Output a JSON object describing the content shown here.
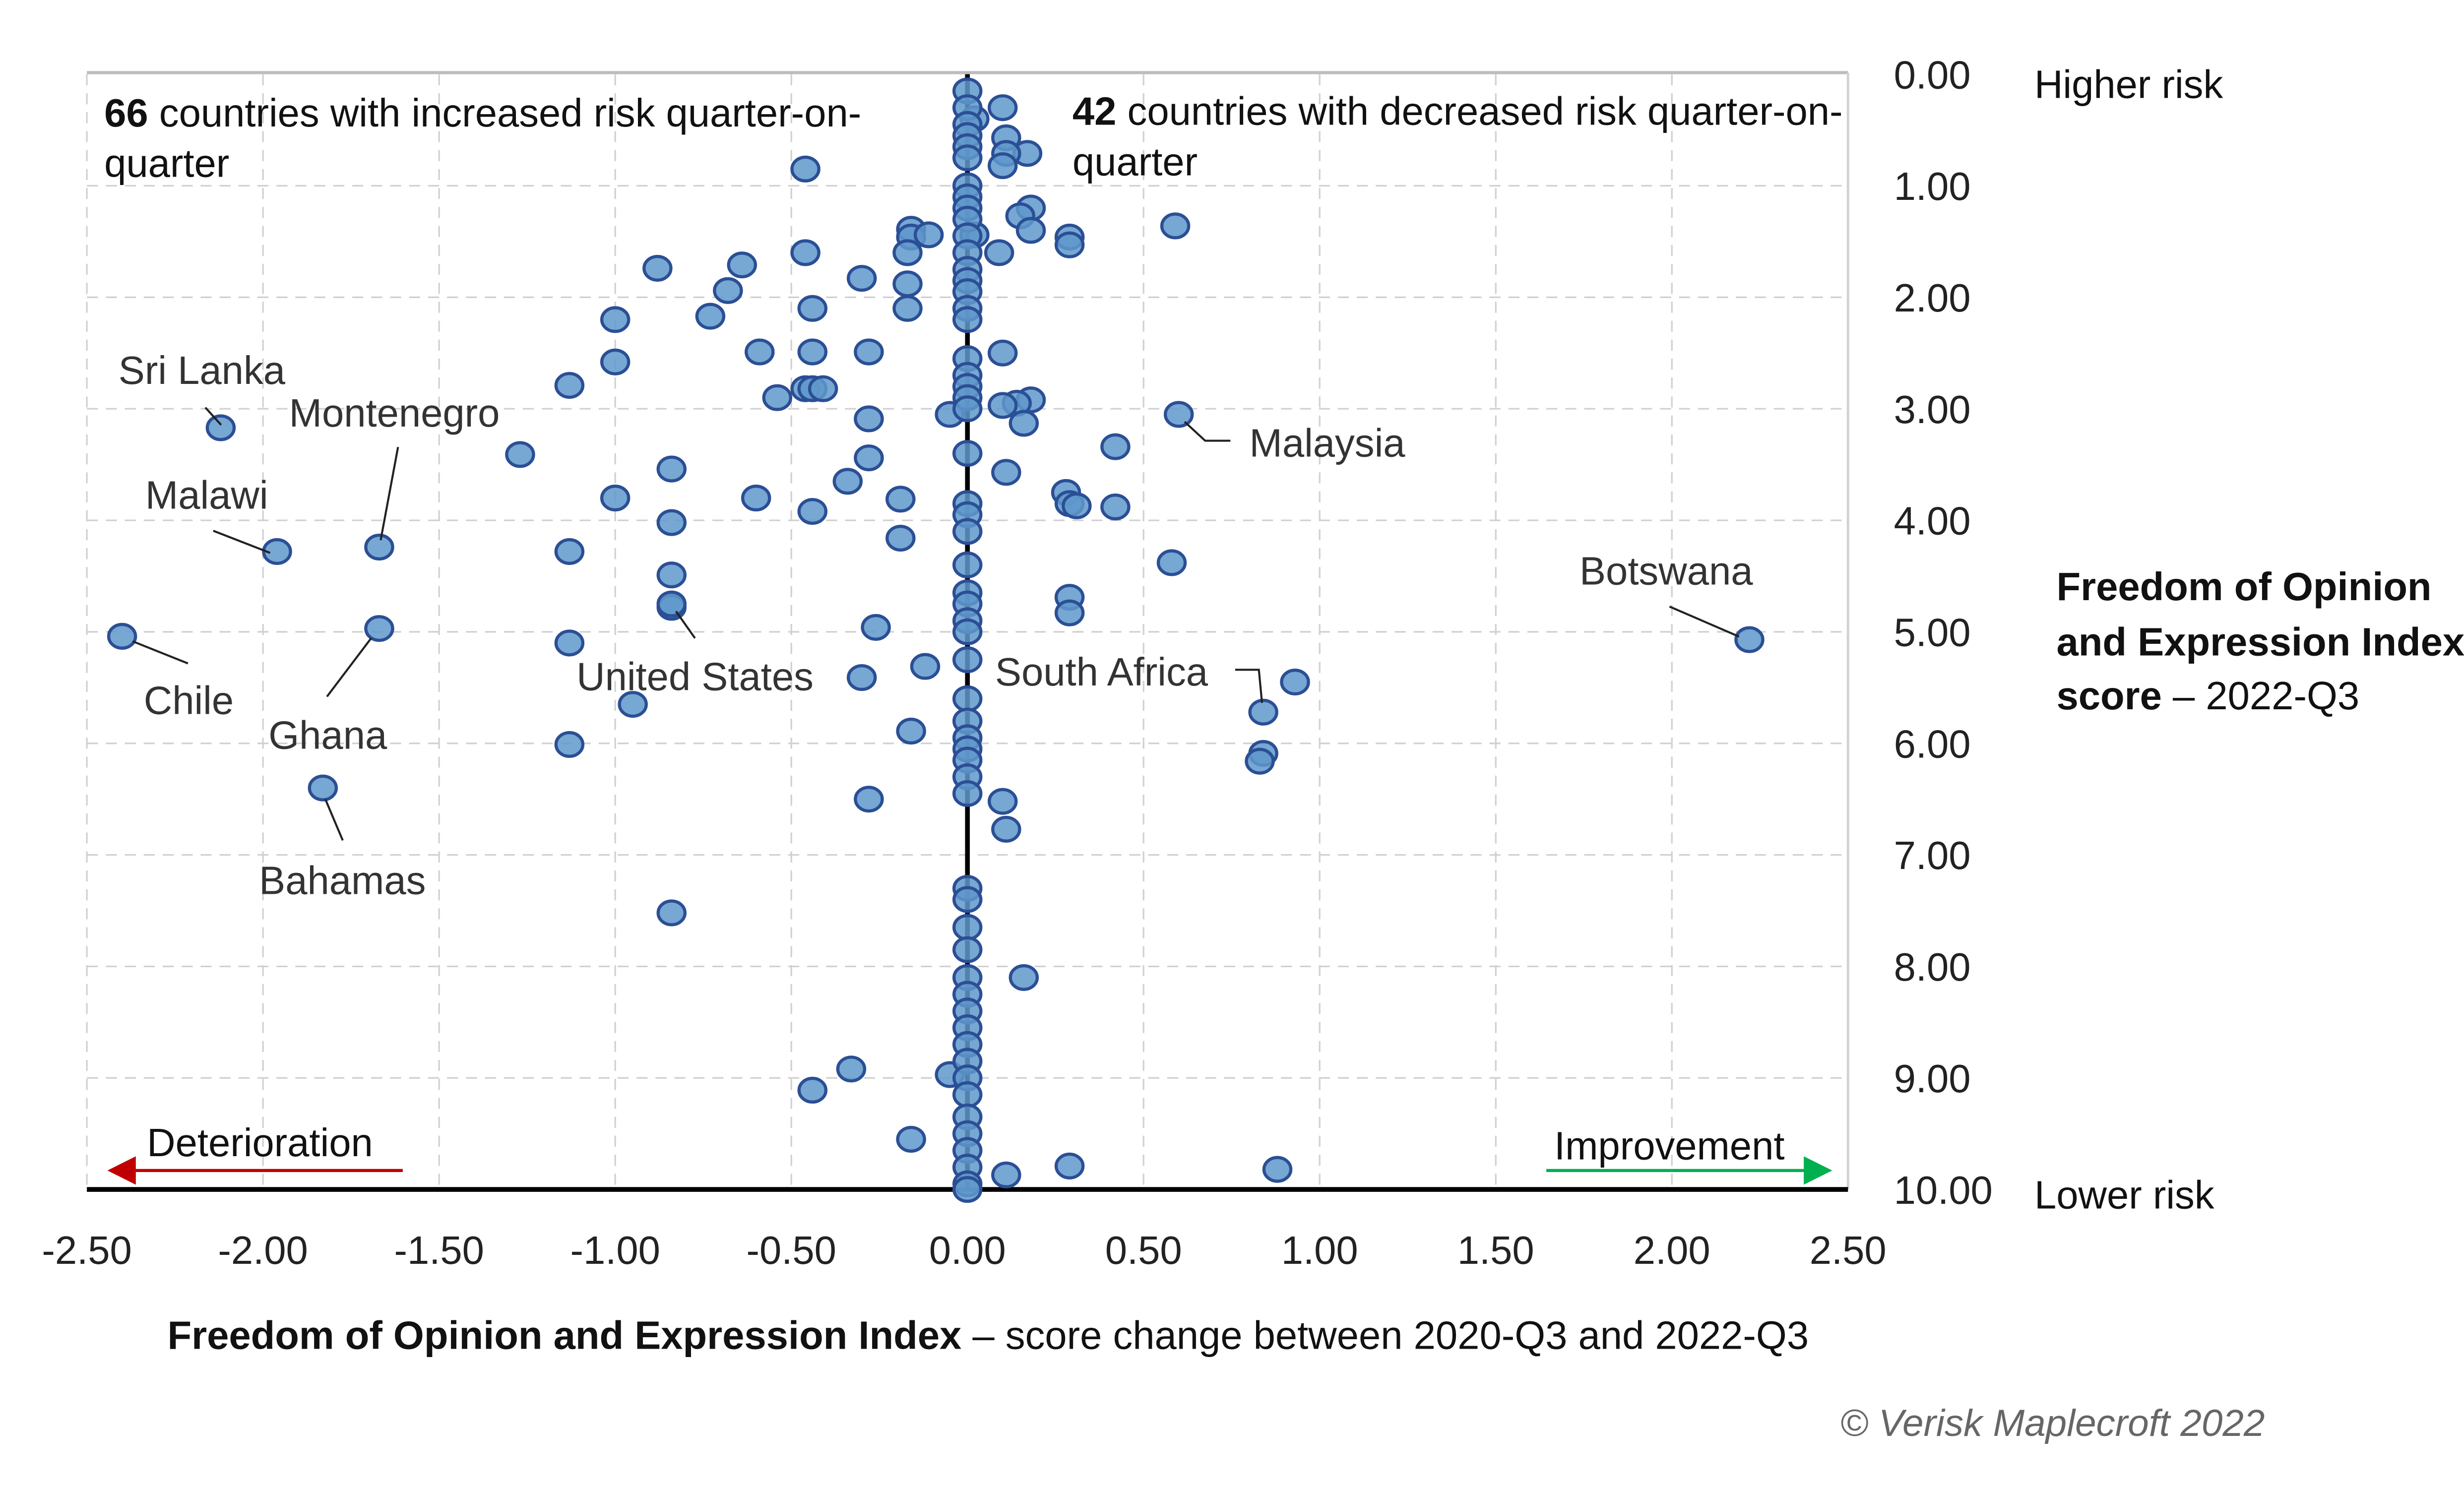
{
  "chart_data": {
    "type": "scatter",
    "xlabel_bold": "Freedom of Opinion and Expression Index",
    "xlabel_rest": " – score change between 2020-Q3 and 2022-Q3",
    "ylabel_lines": [
      "Freedom of Opinion",
      "and Expression Index"
    ],
    "ylabel_last_bold": "score",
    "ylabel_last_rest": " – 2022-Q3",
    "xlim": [
      -2.5,
      2.5
    ],
    "ylim": [
      0,
      10
    ],
    "y_reversed": true,
    "grid": true,
    "x_ticks": [
      "-2.50",
      "-2.00",
      "-1.50",
      "-1.00",
      "-0.50",
      "0.00",
      "0.50",
      "1.00",
      "1.50",
      "2.00",
      "2.50"
    ],
    "y_ticks": [
      "0.00",
      "1.00",
      "2.00",
      "3.00",
      "4.00",
      "5.00",
      "6.00",
      "7.00",
      "8.00",
      "9.00",
      "10.00"
    ],
    "y_top_label": "Higher risk",
    "y_bottom_label": "Lower risk",
    "left_note": {
      "count": "66",
      "text": " countries with increased risk quarter-on-",
      "line2": "quarter"
    },
    "right_note": {
      "count": "42",
      "text": " countries with decreased risk quarter-on-",
      "line2": "quarter"
    },
    "deterioration_label": "Deterioration",
    "improvement_label": "Improvement",
    "colors": {
      "point_fill": "#5f98cb",
      "point_stroke": "#2b4f95",
      "deterioration": "#c00000",
      "improvement": "#00b050"
    },
    "labelled_points": [
      {
        "name": "Sri Lanka",
        "x": -2.12,
        "y": 3.17
      },
      {
        "name": "Montenegro",
        "x": -1.67,
        "y": 4.24
      },
      {
        "name": "Malawi",
        "x": -1.96,
        "y": 4.28
      },
      {
        "name": "Chile",
        "x": -2.4,
        "y": 5.04
      },
      {
        "name": "Ghana",
        "x": -1.67,
        "y": 4.97
      },
      {
        "name": "Bahamas",
        "x": -1.83,
        "y": 6.4
      },
      {
        "name": "United States",
        "x": -0.84,
        "y": 4.75
      },
      {
        "name": "South Africa",
        "x": 0.84,
        "y": 5.72
      },
      {
        "name": "Malaysia",
        "x": 0.6,
        "y": 3.05
      },
      {
        "name": "Botswana",
        "x": 2.22,
        "y": 5.07
      }
    ],
    "points": [
      [
        -0.46,
        0.85
      ],
      [
        -0.88,
        1.74
      ],
      [
        -0.64,
        1.71
      ],
      [
        -0.68,
        1.94
      ],
      [
        -0.46,
        1.6
      ],
      [
        -0.3,
        1.83
      ],
      [
        -0.44,
        2.1
      ],
      [
        -0.73,
        2.17
      ],
      [
        -1.0,
        2.2
      ],
      [
        -0.16,
        1.39
      ],
      [
        -0.16,
        1.46
      ],
      [
        -0.17,
        1.6
      ],
      [
        -0.11,
        1.44
      ],
      [
        -0.17,
        1.88
      ],
      [
        -0.17,
        2.1
      ],
      [
        -0.59,
        2.49
      ],
      [
        -0.44,
        2.49
      ],
      [
        -0.28,
        2.49
      ],
      [
        -1.0,
        2.58
      ],
      [
        -1.13,
        2.79
      ],
      [
        -0.54,
        2.9
      ],
      [
        -0.46,
        2.82
      ],
      [
        -0.44,
        2.82
      ],
      [
        -0.41,
        2.82
      ],
      [
        -0.28,
        3.09
      ],
      [
        -0.05,
        3.05
      ],
      [
        -1.27,
        3.41
      ],
      [
        -0.28,
        3.44
      ],
      [
        -0.84,
        3.54
      ],
      [
        -0.34,
        3.65
      ],
      [
        -0.6,
        3.8
      ],
      [
        -1.0,
        3.8
      ],
      [
        -0.44,
        3.92
      ],
      [
        -0.19,
        3.81
      ],
      [
        -0.84,
        4.02
      ],
      [
        -0.19,
        4.16
      ],
      [
        -1.13,
        4.28
      ],
      [
        -0.84,
        4.49
      ],
      [
        -0.84,
        4.78
      ],
      [
        -0.26,
        4.96
      ],
      [
        -1.13,
        5.1
      ],
      [
        -0.12,
        5.31
      ],
      [
        -0.3,
        5.41
      ],
      [
        -0.95,
        5.65
      ],
      [
        -0.16,
        5.89
      ],
      [
        -1.13,
        6.01
      ],
      [
        -0.28,
        6.5
      ],
      [
        -0.84,
        7.52
      ],
      [
        -0.44,
        9.11
      ],
      [
        -0.33,
        8.92
      ],
      [
        -0.05,
        8.97
      ],
      [
        -0.16,
        9.55
      ],
      [
        0.1,
        0.3
      ],
      [
        0.02,
        0.4
      ],
      [
        0.11,
        0.57
      ],
      [
        0.17,
        0.71
      ],
      [
        0.11,
        0.71
      ],
      [
        0.1,
        0.82
      ],
      [
        0.18,
        1.2
      ],
      [
        0.15,
        1.27
      ],
      [
        0.18,
        1.4
      ],
      [
        0.02,
        1.44
      ],
      [
        0.29,
        1.46
      ],
      [
        0.29,
        1.53
      ],
      [
        0.59,
        1.36
      ],
      [
        0.09,
        1.6
      ],
      [
        0.1,
        2.5
      ],
      [
        0.18,
        2.92
      ],
      [
        0.14,
        2.95
      ],
      [
        0.1,
        2.97
      ],
      [
        0.16,
        3.13
      ],
      [
        0.42,
        3.34
      ],
      [
        0.11,
        3.57
      ],
      [
        0.28,
        3.75
      ],
      [
        0.29,
        3.85
      ],
      [
        0.31,
        3.87
      ],
      [
        0.42,
        3.88
      ],
      [
        0.58,
        4.38
      ],
      [
        0.29,
        4.69
      ],
      [
        0.29,
        4.83
      ],
      [
        0.93,
        5.45
      ],
      [
        0.84,
        6.09
      ],
      [
        0.83,
        6.16
      ],
      [
        0.1,
        6.52
      ],
      [
        0.11,
        6.77
      ],
      [
        0.16,
        8.1
      ],
      [
        0.29,
        9.79
      ],
      [
        0.11,
        9.87
      ],
      [
        0.88,
        9.82
      ],
      [
        0,
        0.15
      ],
      [
        0,
        0.3
      ],
      [
        0,
        0.45
      ],
      [
        0,
        0.55
      ],
      [
        0,
        0.65
      ],
      [
        0,
        0.75
      ],
      [
        0,
        1.0
      ],
      [
        0,
        1.1
      ],
      [
        0,
        1.2
      ],
      [
        0,
        1.3
      ],
      [
        0,
        1.45
      ],
      [
        0,
        1.6
      ],
      [
        0,
        1.75
      ],
      [
        0,
        1.85
      ],
      [
        0,
        1.95
      ],
      [
        0,
        2.1
      ],
      [
        0,
        2.2
      ],
      [
        0,
        2.55
      ],
      [
        0,
        2.7
      ],
      [
        0,
        2.8
      ],
      [
        0,
        2.9
      ],
      [
        0,
        3.0
      ],
      [
        0,
        3.4
      ],
      [
        0,
        3.85
      ],
      [
        0,
        3.95
      ],
      [
        0,
        4.1
      ],
      [
        0,
        4.4
      ],
      [
        0,
        4.65
      ],
      [
        0,
        4.75
      ],
      [
        0,
        4.9
      ],
      [
        0,
        5.0
      ],
      [
        0,
        5.25
      ],
      [
        0,
        5.6
      ],
      [
        0,
        5.8
      ],
      [
        0,
        5.95
      ],
      [
        0,
        6.05
      ],
      [
        0,
        6.15
      ],
      [
        0,
        6.3
      ],
      [
        0,
        6.45
      ],
      [
        0,
        7.3
      ],
      [
        0,
        7.4
      ],
      [
        0,
        7.65
      ],
      [
        0,
        7.85
      ],
      [
        0,
        8.1
      ],
      [
        0,
        8.25
      ],
      [
        0,
        8.4
      ],
      [
        0,
        8.55
      ],
      [
        0,
        8.7
      ],
      [
        0,
        8.85
      ],
      [
        0,
        9.0
      ],
      [
        0,
        9.15
      ],
      [
        0,
        9.35
      ],
      [
        0,
        9.5
      ],
      [
        0,
        9.65
      ],
      [
        0,
        9.8
      ],
      [
        0,
        9.95
      ],
      [
        0,
        10.0
      ]
    ]
  },
  "footer": {
    "copyright": "© Verisk Maplecroft 2022"
  }
}
